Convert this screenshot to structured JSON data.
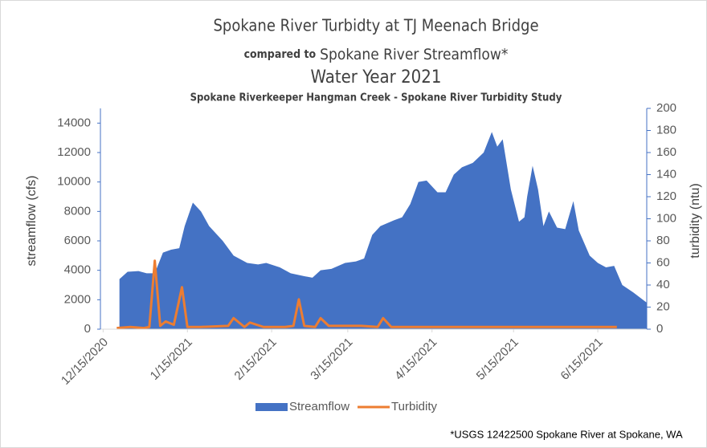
{
  "chart_data": {
    "type": "area_line",
    "title": "Spokane River Turbidty at TJ Meenach Bridge",
    "subtitle_prefix": "compared to",
    "subtitle": "Spokane River Streamflow*",
    "subtitle2": "Water Year 2021",
    "subtitle3": "Spokane Riverkeeper Hangman Creek - Spokane River Turbidity Study",
    "ylabel": "streamflow (cfs)",
    "y2label": "turbidity (ntu)",
    "footnote": "*USGS 12422500 Spokane River at Spokane, WA",
    "xlim": [
      "2020-12-14",
      "2021-07-03"
    ],
    "xticks": [
      {
        "value": "2020-12-15",
        "label": "12/15/2020"
      },
      {
        "value": "2021-01-15",
        "label": "1/15/2021"
      },
      {
        "value": "2021-02-15",
        "label": "2/15/2021"
      },
      {
        "value": "2021-03-15",
        "label": "3/15/2021"
      },
      {
        "value": "2021-04-15",
        "label": "4/15/2021"
      },
      {
        "value": "2021-05-15",
        "label": "5/15/2021"
      },
      {
        "value": "2021-06-15",
        "label": "6/15/2021"
      }
    ],
    "ylim": [
      0,
      15000
    ],
    "yticks": [
      0,
      2000,
      4000,
      6000,
      8000,
      10000,
      12000,
      14000
    ],
    "y2lim": [
      0,
      200
    ],
    "y2ticks": [
      0,
      20,
      40,
      60,
      80,
      100,
      120,
      140,
      160,
      180,
      200
    ],
    "legend": "bottom",
    "series": [
      {
        "name": "Streamflow",
        "color": "#4472c4",
        "kind": "area",
        "x": [
          "2020-12-21",
          "2020-12-24",
          "2020-12-28",
          "2020-12-31",
          "2021-01-03",
          "2021-01-06",
          "2021-01-09",
          "2021-01-12",
          "2021-01-14",
          "2021-01-17",
          "2021-01-20",
          "2021-01-23",
          "2021-01-28",
          "2021-02-01",
          "2021-02-06",
          "2021-02-10",
          "2021-02-13",
          "2021-02-18",
          "2021-02-22",
          "2021-02-27",
          "2021-03-02",
          "2021-03-05",
          "2021-03-09",
          "2021-03-14",
          "2021-03-18",
          "2021-03-21",
          "2021-03-24",
          "2021-03-27",
          "2021-04-01",
          "2021-04-04",
          "2021-04-07",
          "2021-04-10",
          "2021-04-13",
          "2021-04-17",
          "2021-04-20",
          "2021-04-23",
          "2021-04-26",
          "2021-04-30",
          "2021-05-04",
          "2021-05-07",
          "2021-05-09",
          "2021-05-11",
          "2021-05-14",
          "2021-05-17",
          "2021-05-19",
          "2021-05-20",
          "2021-05-22",
          "2021-05-24",
          "2021-05-26",
          "2021-05-28",
          "2021-05-31",
          "2021-06-03",
          "2021-06-06",
          "2021-06-08",
          "2021-06-12",
          "2021-06-15",
          "2021-06-18",
          "2021-06-21",
          "2021-06-24",
          "2021-06-28",
          "2021-07-03"
        ],
        "values": [
          3400,
          3900,
          3950,
          3800,
          3800,
          5200,
          5400,
          5500,
          7000,
          8600,
          8000,
          7000,
          6000,
          5000,
          4500,
          4400,
          4500,
          4200,
          3800,
          3600,
          3500,
          4000,
          4100,
          4500,
          4600,
          4800,
          6400,
          7000,
          7400,
          7600,
          8500,
          10000,
          10100,
          9300,
          9300,
          10500,
          11000,
          11300,
          12000,
          13400,
          12400,
          12900,
          9500,
          7300,
          7600,
          9000,
          11100,
          9500,
          7000,
          8000,
          6900,
          6800,
          8700,
          6700,
          5000,
          4500,
          4200,
          4300,
          3000,
          2500,
          1800
        ]
      },
      {
        "name": "Turbidity",
        "color": "#ed7d31",
        "kind": "line",
        "axis": "y2",
        "x": [
          "2020-12-20",
          "2020-12-25",
          "2020-12-30",
          "2021-01-01",
          "2021-01-03",
          "2021-01-05",
          "2021-01-07",
          "2021-01-10",
          "2021-01-13",
          "2021-01-15",
          "2021-01-20",
          "2021-01-30",
          "2021-02-01",
          "2021-02-05",
          "2021-02-07",
          "2021-02-12",
          "2021-02-20",
          "2021-02-23",
          "2021-02-25",
          "2021-02-27",
          "2021-03-03",
          "2021-03-05",
          "2021-03-08",
          "2021-03-20",
          "2021-03-26",
          "2021-03-28",
          "2021-03-31",
          "2021-04-15",
          "2021-05-15",
          "2021-06-15",
          "2021-06-22"
        ],
        "values": [
          1,
          2,
          1,
          2,
          62,
          3,
          7,
          4,
          38,
          2,
          2,
          3,
          10,
          2,
          6,
          2,
          2,
          3,
          27,
          3,
          2,
          10,
          3,
          3,
          2,
          10,
          2,
          2,
          2,
          2,
          2
        ]
      }
    ]
  }
}
